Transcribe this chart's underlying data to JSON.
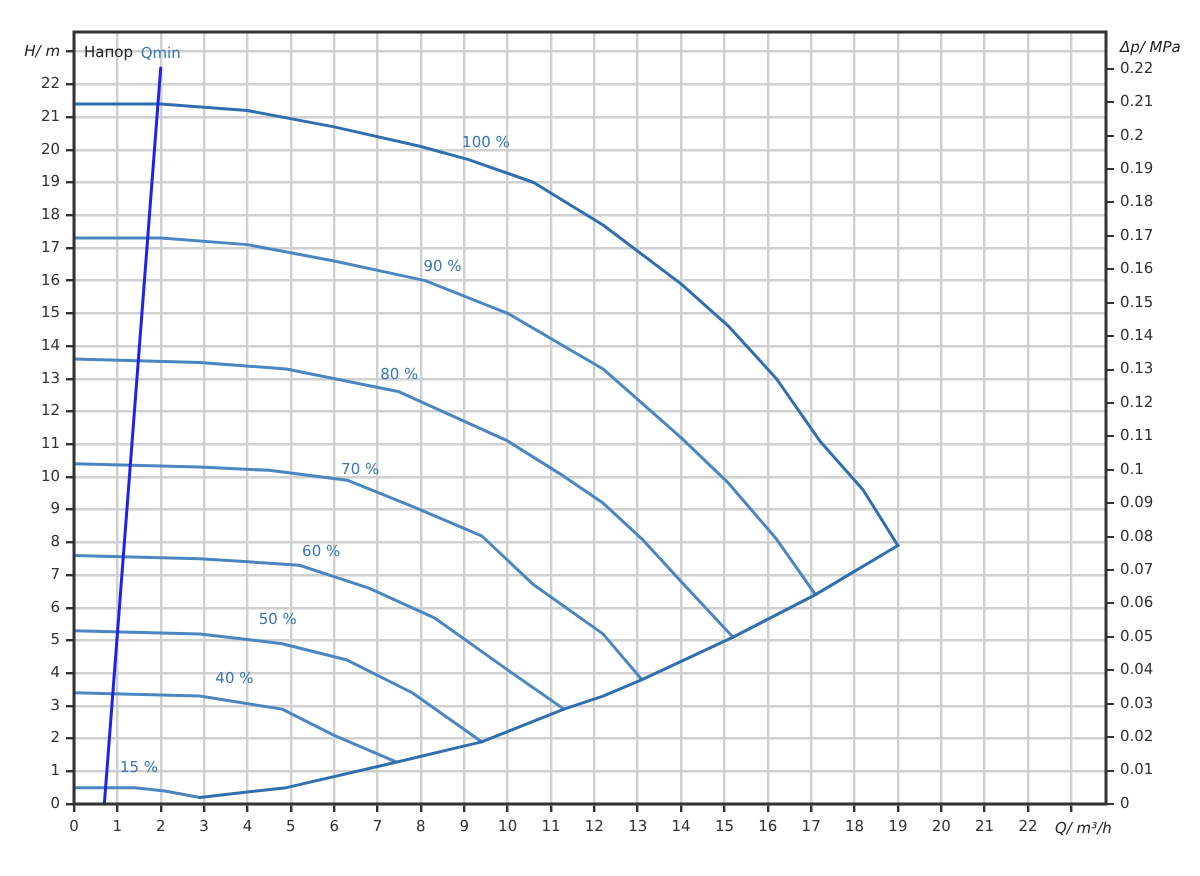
{
  "chart_data": {
    "type": "line",
    "xlabel": "Q/ m³/h",
    "ylabel": "H/ m",
    "y2label": "Δp/ MPa",
    "xlim": [
      0,
      23.8
    ],
    "ylim": [
      0,
      23.6
    ],
    "y2lim": [
      0,
      0.231
    ],
    "xticks": [
      0,
      1,
      2,
      3,
      4,
      5,
      6,
      7,
      8,
      9,
      10,
      11,
      12,
      13,
      14,
      15,
      16,
      17,
      18,
      19,
      20,
      21,
      22,
      {
        "value": 23,
        "label": null
      }
    ],
    "yticks": [
      0,
      1,
      2,
      3,
      4,
      5,
      6,
      7,
      8,
      9,
      10,
      11,
      12,
      13,
      14,
      15,
      16,
      17,
      18,
      19,
      20,
      21,
      22,
      {
        "value": 23,
        "label": null
      }
    ],
    "y2ticks": [
      0,
      0.01,
      0.02,
      0.03,
      0.04,
      0.05,
      0.06,
      0.07,
      0.08,
      0.09,
      0.1,
      0.11,
      0.12,
      0.13,
      0.14,
      0.15,
      0.16,
      0.17,
      0.18,
      0.19,
      0.2,
      0.21,
      0.22
    ],
    "grid": true,
    "legend": false,
    "marker": "none",
    "line_style": "solid",
    "series": [
      {
        "color": "#1f22e8",
        "x": [
          0.7,
          2.0
        ],
        "values": [
          0,
          22.5
        ]
      },
      {
        "color": "#2f6faf",
        "x": [
          0,
          2,
          4,
          6,
          8,
          9.1,
          10.6,
          12.2,
          14,
          15.1,
          16.2,
          17.2,
          18.2,
          19
        ],
        "values": [
          21.4,
          21.4,
          21.2,
          20.7,
          20.1,
          19.7,
          19,
          17.7,
          15.9,
          14.6,
          13,
          11.1,
          9.6,
          7.9
        ]
      },
      {
        "color": "#2f6faf",
        "x": [
          2.9,
          4.9,
          7.5,
          9.4,
          11.3,
          12.2,
          13.1,
          15.2,
          17.1,
          19
        ],
        "values": [
          0.2,
          0.5,
          1.3,
          1.9,
          2.9,
          3.3,
          3.8,
          5.1,
          6.4,
          7.9
        ]
      },
      {
        "color": "#4a86c0",
        "x": [
          0,
          2,
          4,
          6,
          8.1,
          10,
          12.2,
          14,
          15.1,
          16.2,
          17.1
        ],
        "values": [
          17.3,
          17.3,
          17.1,
          16.6,
          16,
          15,
          13.3,
          11.2,
          9.8,
          8.1,
          6.4
        ]
      },
      {
        "color": "#4a86c0",
        "x": [
          0,
          2.9,
          4.9,
          7.5,
          10,
          11.2,
          12.2,
          13.1,
          14,
          15.2
        ],
        "values": [
          13.6,
          13.5,
          13.3,
          12.6,
          11.1,
          10.1,
          9.2,
          8.1,
          6.8,
          5.1
        ]
      },
      {
        "color": "#4a86c0",
        "x": [
          0,
          2.9,
          4.5,
          6.3,
          7.8,
          9.4,
          10.6,
          12.2,
          13.1
        ],
        "values": [
          10.4,
          10.3,
          10.2,
          9.9,
          9.1,
          8.2,
          6.7,
          5.2,
          3.8
        ]
      },
      {
        "color": "#4a86c0",
        "x": [
          0,
          2.9,
          5.2,
          6.8,
          8.3,
          10,
          11.3
        ],
        "values": [
          7.6,
          7.5,
          7.3,
          6.6,
          5.7,
          4.1,
          2.9
        ]
      },
      {
        "color": "#4a86c0",
        "x": [
          0,
          2.9,
          4.8,
          6.3,
          7.8,
          9.4
        ],
        "values": [
          5.3,
          5.2,
          4.9,
          4.4,
          3.4,
          1.9
        ]
      },
      {
        "color": "#4a86c0",
        "x": [
          0,
          2.9,
          4.8,
          6,
          7.4
        ],
        "values": [
          3.4,
          3.3,
          2.9,
          2.1,
          1.3
        ]
      },
      {
        "color": "#4a86c0",
        "x": [
          0,
          1.4,
          2.1,
          2.9
        ],
        "values": [
          0.5,
          0.5,
          0.4,
          0.2
        ]
      }
    ],
    "annotations": [
      "Напор",
      {
        "text": "Qmin",
        "x": 2.0,
        "y": 22.5
      },
      {
        "text": "100 %",
        "x": 9.5,
        "y": 19.8
      },
      {
        "text": "90 %",
        "x": 8.5,
        "y": 16.0
      },
      {
        "text": "80 %",
        "x": 7.5,
        "y": 12.7
      },
      {
        "text": "70 %",
        "x": 6.6,
        "y": 9.8
      },
      {
        "text": "60 %",
        "x": 5.7,
        "y": 7.3
      },
      {
        "text": "50 %",
        "x": 4.7,
        "y": 5.2
      },
      {
        "text": "40 %",
        "x": 3.7,
        "y": 3.4
      },
      {
        "text": "15 %",
        "x": 1.5,
        "y": 0.7
      }
    ]
  }
}
